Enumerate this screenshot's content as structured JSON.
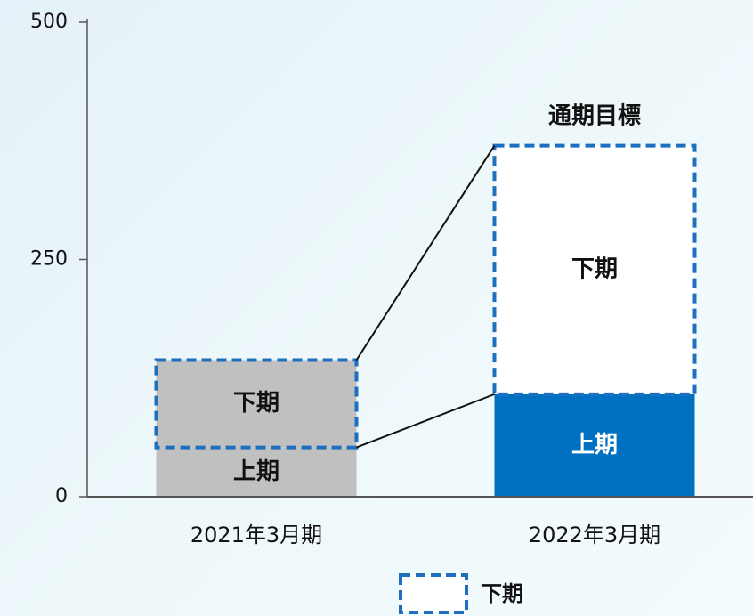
{
  "chart_data": {
    "type": "stacked_bar",
    "annotation": "通期目標",
    "categories": [
      "2021年3月期",
      "2022年3月期"
    ],
    "series": [
      {
        "name": "上期",
        "values": [
          52,
          108
        ],
        "colors": [
          "#c0c0c0",
          "#0070c0"
        ],
        "label_colors": [
          "#111111",
          "#ffffff"
        ]
      },
      {
        "name": "下期",
        "values": [
          92,
          262
        ],
        "colors": [
          "#c0c0c0",
          "#ffffff"
        ],
        "label_colors": [
          "#111111",
          "#111111"
        ],
        "dashed": true,
        "border_color": "#1f6fbf"
      }
    ],
    "ylim": [
      0,
      500
    ],
    "yticks": [
      0,
      250,
      500
    ]
  }
}
